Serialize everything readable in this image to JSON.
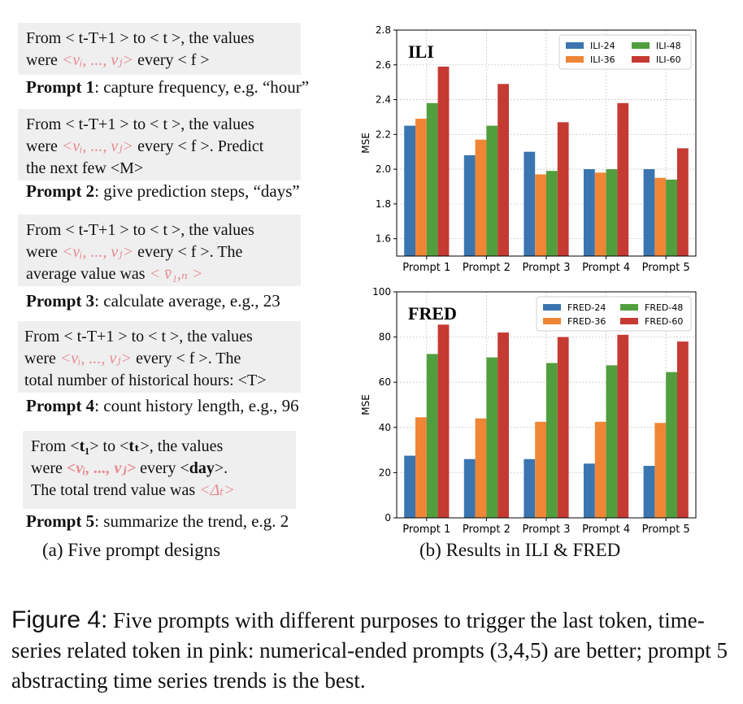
{
  "prompts": [
    {
      "line1": "From < t-T+1 > to < t >, the values",
      "were": "were ",
      "seq": "<vᵢ, ..., vⱼ>",
      "every": " every < f >",
      "rest": "",
      "extra": "",
      "label_bold": "Prompt 1",
      "label_rest": ": capture frequency, e.g. “hour”"
    },
    {
      "line1": "From < t-T+1 > to < t >, the values",
      "were": "were ",
      "seq": "<vᵢ, ..., vⱼ>",
      "every": " every < f >. Predict",
      "rest": "",
      "extra": "the next few <M>",
      "label_bold": "Prompt 2",
      "label_rest": ": give prediction steps, “days”"
    },
    {
      "line1": "From < t-T+1 > to < t >, the values",
      "were": "were ",
      "seq": "<vᵢ, ..., vⱼ>",
      "every": " every < f >. The",
      "rest": "",
      "extra_plain": "average value was ",
      "extra_pink": "< v̄₁,ₙ >",
      "label_bold": "Prompt 3",
      "label_rest": ": calculate average, e.g., 23"
    },
    {
      "line1": "From < t-T+1 > to < t >, the values",
      "were": "were ",
      "seq": "<vᵢ, ..., vⱼ>",
      "every": " every < f >. The",
      "rest": "",
      "extra": "total number of historical hours: <T>",
      "label_bold": "Prompt 4",
      "label_rest": ": count history length, e.g., 96"
    },
    {
      "line1_a": "From <",
      "line1_t1": "t₁",
      "line1_b": "> to <",
      "line1_tT": "tₜ",
      "line1_c": ">, the values",
      "were": "were ",
      "seq": "<vᵢ, ..., vⱼ>",
      "every": " every <",
      "day": "day",
      "every_end": ">.",
      "extra_plain": "The total trend value was ",
      "extra_pink": "<Δₜ>",
      "label_bold": "Prompt 5",
      "label_rest": ": summarize the trend, e.g. 2"
    }
  ],
  "subcaption_a": "(a) Five prompt designs",
  "subcaption_b": "(b) Results in ILI & FRED",
  "caption_lead": "Figure 4:",
  "caption_text": " Five prompts with different purposes to trigger the last token, time-series related token in pink: numerical-ended prompts (3,4,5) are better; prompt 5 abstracting time series trends is the best.",
  "colors": [
    "#3a75b0",
    "#ef8636",
    "#519e3e",
    "#c53a32"
  ],
  "chart_data": [
    {
      "type": "bar",
      "title": "ILI",
      "categories": [
        "Prompt 1",
        "Prompt 2",
        "Prompt 3",
        "Prompt 4",
        "Prompt 5"
      ],
      "ylabel": "MSE",
      "ylim": [
        1.5,
        2.8
      ],
      "yticks": [
        "1.6",
        "1.8",
        "2.0",
        "2.2",
        "2.4",
        "2.6",
        "2.8"
      ],
      "grid": true,
      "legend": "top-right",
      "series": [
        {
          "name": "ILI-24",
          "values": [
            2.25,
            2.08,
            2.1,
            2.0,
            2.0
          ]
        },
        {
          "name": "ILI-36",
          "values": [
            2.29,
            2.17,
            1.97,
            1.98,
            1.95
          ]
        },
        {
          "name": "ILI-48",
          "values": [
            2.38,
            2.25,
            1.99,
            2.0,
            1.94
          ]
        },
        {
          "name": "ILI-60",
          "values": [
            2.59,
            2.49,
            2.27,
            2.38,
            2.12
          ]
        }
      ]
    },
    {
      "type": "bar",
      "title": "FRED",
      "categories": [
        "Prompt 1",
        "Prompt 2",
        "Prompt 3",
        "Prompt 4",
        "Prompt 5"
      ],
      "ylabel": "MSE",
      "ylim": [
        0,
        100
      ],
      "yticks": [
        "0",
        "20",
        "40",
        "60",
        "80",
        "100"
      ],
      "grid": true,
      "legend": "top-right",
      "series": [
        {
          "name": "FRED-24",
          "values": [
            27.5,
            26.0,
            26.0,
            24.0,
            23.0
          ]
        },
        {
          "name": "FRED-36",
          "values": [
            44.5,
            44.0,
            42.5,
            42.5,
            42.0
          ]
        },
        {
          "name": "FRED-48",
          "values": [
            72.5,
            71.0,
            68.5,
            67.5,
            64.5
          ]
        },
        {
          "name": "FRED-60",
          "values": [
            85.5,
            82.0,
            80.0,
            81.0,
            78.0
          ]
        }
      ]
    }
  ]
}
